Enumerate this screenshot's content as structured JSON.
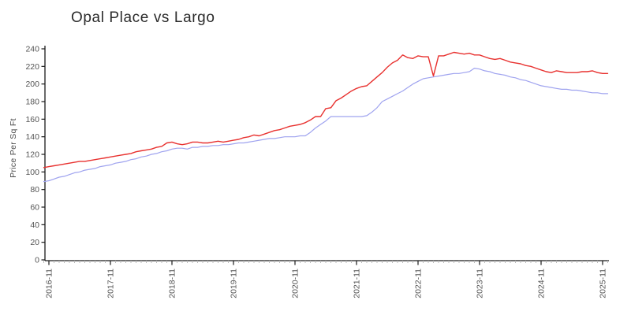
{
  "page": {
    "title": "Opal Place vs Largo"
  },
  "colors": {
    "axis": "#1a1a1a",
    "tick_label": "#555555",
    "minor_tick": "#bbbbbb",
    "background": "#ffffff",
    "series_red": "#e8312f",
    "series_blue": "#9fa3ef"
  },
  "chart_data": {
    "type": "line",
    "title": "Opal Place vs Largo",
    "xlabel": "",
    "ylabel": "Price Per Sq Ft",
    "ylim": [
      0,
      240
    ],
    "grid": false,
    "legend": "none",
    "y_ticks": [
      0,
      20,
      40,
      60,
      80,
      100,
      120,
      140,
      160,
      180,
      200,
      220,
      240
    ],
    "x_major_ticks": [
      "2016-11",
      "2017-11",
      "2018-11",
      "2019-11",
      "2020-11",
      "2021-11",
      "2022-11",
      "2023-11",
      "2024-11",
      "2025-11"
    ],
    "x": [
      "2016-10",
      "2016-11",
      "2016-12",
      "2017-01",
      "2017-02",
      "2017-03",
      "2017-04",
      "2017-05",
      "2017-06",
      "2017-07",
      "2017-08",
      "2017-09",
      "2017-10",
      "2017-11",
      "2017-12",
      "2018-01",
      "2018-02",
      "2018-03",
      "2018-04",
      "2018-05",
      "2018-06",
      "2018-07",
      "2018-08",
      "2018-09",
      "2018-10",
      "2018-11",
      "2018-12",
      "2019-01",
      "2019-02",
      "2019-03",
      "2019-04",
      "2019-05",
      "2019-06",
      "2019-07",
      "2019-08",
      "2019-09",
      "2019-10",
      "2019-11",
      "2019-12",
      "2020-01",
      "2020-02",
      "2020-03",
      "2020-04",
      "2020-05",
      "2020-06",
      "2020-07",
      "2020-08",
      "2020-09",
      "2020-10",
      "2020-11",
      "2020-12",
      "2021-01",
      "2021-02",
      "2021-03",
      "2021-04",
      "2021-05",
      "2021-06",
      "2021-07",
      "2021-08",
      "2021-09",
      "2021-10",
      "2021-11",
      "2021-12",
      "2022-01",
      "2022-02",
      "2022-03",
      "2022-04",
      "2022-05",
      "2022-06",
      "2022-07",
      "2022-08",
      "2022-09",
      "2022-10",
      "2022-11",
      "2022-12",
      "2023-01",
      "2023-02",
      "2023-03",
      "2023-04",
      "2023-05",
      "2023-06",
      "2023-07",
      "2023-08",
      "2023-09",
      "2023-10",
      "2023-11",
      "2023-12",
      "2024-01",
      "2024-02",
      "2024-03",
      "2024-04",
      "2024-05",
      "2024-06",
      "2024-07",
      "2024-08",
      "2024-09",
      "2024-10",
      "2024-11",
      "2024-12",
      "2025-01",
      "2025-02",
      "2025-03",
      "2025-04",
      "2025-05",
      "2025-06",
      "2025-07",
      "2025-08",
      "2025-09",
      "2025-10",
      "2025-11",
      "2025-12"
    ],
    "series": [
      {
        "name": "Opal Place",
        "color": "#e8312f",
        "values": [
          105,
          106,
          107,
          108,
          109,
          110,
          111,
          112,
          112,
          113,
          114,
          115,
          116,
          117,
          118,
          119,
          120,
          121,
          123,
          124,
          125,
          126,
          128,
          129,
          133,
          134,
          132,
          131,
          132,
          134,
          134,
          133,
          133,
          134,
          135,
          134,
          135,
          136,
          137,
          139,
          140,
          142,
          141,
          143,
          145,
          147,
          148,
          150,
          152,
          153,
          154,
          156,
          159,
          163,
          163,
          172,
          173,
          181,
          184,
          188,
          192,
          195,
          197,
          198,
          203,
          208,
          213,
          219,
          224,
          227,
          233,
          230,
          229,
          232,
          231,
          231,
          209,
          232,
          232,
          234,
          236,
          235,
          234,
          235,
          233,
          233,
          231,
          229,
          228,
          229,
          227,
          225,
          224,
          223,
          221,
          220,
          218,
          216,
          214,
          213,
          215,
          214,
          213,
          213,
          213,
          214,
          214,
          215,
          213,
          212,
          212
        ]
      },
      {
        "name": "Largo",
        "color": "#9fa3ef",
        "values": [
          89,
          90,
          92,
          94,
          95,
          97,
          99,
          100,
          102,
          103,
          104,
          106,
          107,
          108,
          110,
          111,
          112,
          114,
          115,
          117,
          118,
          120,
          121,
          123,
          124,
          126,
          127,
          127,
          126,
          128,
          128,
          129,
          129,
          130,
          130,
          131,
          131,
          132,
          133,
          133,
          134,
          135,
          136,
          137,
          138,
          138,
          139,
          140,
          140,
          140,
          141,
          141,
          145,
          150,
          154,
          158,
          163,
          163,
          163,
          163,
          163,
          163,
          163,
          164,
          168,
          173,
          180,
          183,
          186,
          189,
          192,
          196,
          200,
          203,
          206,
          207,
          208,
          209,
          210,
          211,
          212,
          212,
          213,
          214,
          218,
          217,
          215,
          214,
          212,
          211,
          210,
          208,
          207,
          205,
          204,
          202,
          200,
          198,
          197,
          196,
          195,
          194,
          194,
          193,
          193,
          192,
          191,
          190,
          190,
          189,
          189
        ]
      }
    ]
  }
}
